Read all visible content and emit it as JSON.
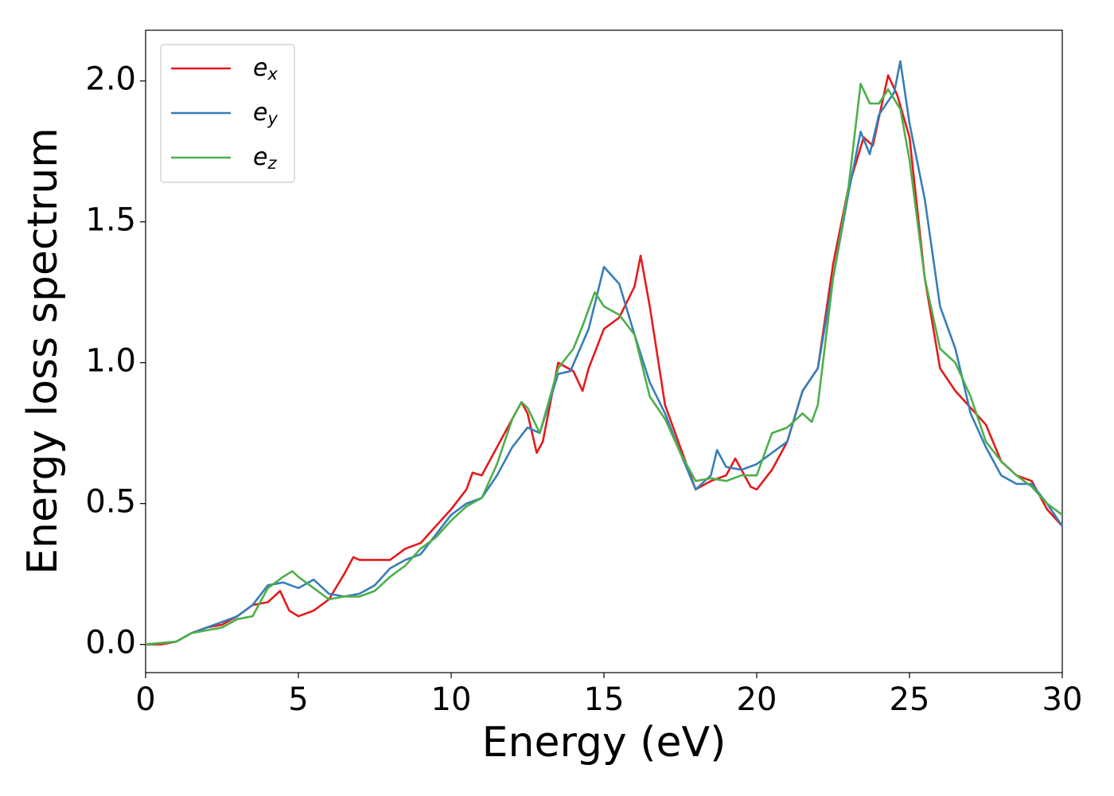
{
  "chart_data": {
    "type": "line",
    "xlabel": "Energy (eV)",
    "ylabel": "Energy loss spectrum",
    "xlim": [
      0,
      30
    ],
    "ylim": [
      -0.1,
      2.18
    ],
    "xticks": [
      0,
      5,
      10,
      15,
      20,
      25,
      30
    ],
    "yticks": [
      {
        "value": 0,
        "label": "0.0"
      },
      0.5,
      {
        "value": 1,
        "label": "1.0"
      },
      1.5,
      {
        "value": 2,
        "label": "2.0"
      }
    ],
    "grid": false,
    "legend": "upper left",
    "series": [
      {
        "name": "ex",
        "color": "#e41a1c",
        "x": [
          0,
          0.5,
          1,
          1.5,
          2,
          2.5,
          3,
          3.5,
          4,
          4.4,
          4.7,
          5,
          5.5,
          6,
          6.5,
          6.8,
          7,
          7.5,
          8,
          8.5,
          9,
          9.5,
          10,
          10.5,
          10.7,
          11,
          11.5,
          12,
          12.3,
          12.5,
          12.8,
          13,
          13.5,
          14,
          14.3,
          14.5,
          15,
          15.5,
          16,
          16.2,
          16.5,
          17,
          17.5,
          18,
          18.5,
          19,
          19.3,
          19.5,
          19.8,
          20,
          20.5,
          21,
          21.5,
          22,
          22.5,
          23,
          23.5,
          23.8,
          24.3,
          24.6,
          25,
          25.5,
          26,
          26.5,
          27,
          27.5,
          28,
          28.5,
          29,
          29.5,
          30
        ],
        "values": [
          0,
          0,
          0.01,
          0.04,
          0.06,
          0.07,
          0.1,
          0.14,
          0.15,
          0.19,
          0.12,
          0.1,
          0.12,
          0.16,
          0.25,
          0.31,
          0.3,
          0.3,
          0.3,
          0.34,
          0.36,
          0.42,
          0.48,
          0.55,
          0.61,
          0.6,
          0.7,
          0.8,
          0.86,
          0.82,
          0.68,
          0.72,
          1.0,
          0.97,
          0.9,
          0.98,
          1.12,
          1.16,
          1.27,
          1.38,
          1.2,
          0.85,
          0.7,
          0.55,
          0.58,
          0.6,
          0.66,
          0.62,
          0.56,
          0.55,
          0.62,
          0.72,
          0.9,
          0.98,
          1.35,
          1.62,
          1.8,
          1.77,
          2.02,
          1.95,
          1.8,
          1.3,
          0.98,
          0.9,
          0.84,
          0.78,
          0.65,
          0.6,
          0.58,
          0.48,
          0.42
        ]
      },
      {
        "name": "ey",
        "color": "#377eb8",
        "x": [
          0,
          1,
          1.5,
          2,
          2.5,
          3,
          3.5,
          4,
          4.5,
          5,
          5.5,
          6,
          6.5,
          7,
          7.5,
          8,
          8.5,
          9,
          9.5,
          10,
          10.5,
          11,
          11.5,
          12,
          12.5,
          12.9,
          13.5,
          13.9,
          14.5,
          15,
          15.5,
          16,
          16.5,
          17,
          17.5,
          18,
          18.5,
          18.7,
          19,
          19.5,
          20,
          20.5,
          21,
          21.5,
          22,
          22.5,
          23,
          23.4,
          23.7,
          24,
          24.5,
          24.7,
          25,
          25.5,
          26,
          26.5,
          27,
          27.5,
          28,
          28.5,
          29,
          29.5,
          30
        ],
        "values": [
          0,
          0.01,
          0.04,
          0.06,
          0.08,
          0.1,
          0.14,
          0.21,
          0.22,
          0.2,
          0.23,
          0.18,
          0.17,
          0.18,
          0.21,
          0.27,
          0.3,
          0.32,
          0.39,
          0.46,
          0.5,
          0.52,
          0.6,
          0.7,
          0.77,
          0.75,
          0.96,
          0.97,
          1.12,
          1.34,
          1.28,
          1.1,
          0.93,
          0.82,
          0.68,
          0.55,
          0.6,
          0.69,
          0.63,
          0.62,
          0.64,
          0.68,
          0.72,
          0.9,
          0.98,
          1.3,
          1.6,
          1.82,
          1.74,
          1.88,
          1.96,
          2.07,
          1.85,
          1.58,
          1.2,
          1.05,
          0.82,
          0.7,
          0.6,
          0.57,
          0.57,
          0.5,
          0.42
        ]
      },
      {
        "name": "ez",
        "color": "#4daf4a",
        "x": [
          0,
          1,
          1.5,
          2,
          2.5,
          3,
          3.5,
          4,
          4.5,
          4.8,
          5,
          5.5,
          6,
          6.5,
          7,
          7.5,
          8,
          8.5,
          9,
          9.5,
          10,
          10.5,
          11,
          11.5,
          12,
          12.3,
          12.5,
          12.9,
          13.5,
          14,
          14.3,
          14.7,
          15,
          15.5,
          16,
          16.5,
          17,
          17.5,
          18,
          18.5,
          19,
          19.5,
          20,
          20.5,
          21,
          21.5,
          21.8,
          22,
          22.5,
          23,
          23.4,
          23.7,
          24,
          24.3,
          24.7,
          25,
          25.5,
          26,
          26.5,
          27,
          27.5,
          28,
          28.5,
          29,
          29.5,
          30
        ],
        "values": [
          0,
          0.01,
          0.04,
          0.05,
          0.06,
          0.09,
          0.1,
          0.2,
          0.24,
          0.26,
          0.24,
          0.2,
          0.16,
          0.17,
          0.17,
          0.19,
          0.24,
          0.28,
          0.34,
          0.38,
          0.44,
          0.49,
          0.52,
          0.64,
          0.8,
          0.86,
          0.84,
          0.75,
          0.98,
          1.05,
          1.13,
          1.25,
          1.2,
          1.17,
          1.1,
          0.88,
          0.8,
          0.68,
          0.58,
          0.59,
          0.58,
          0.6,
          0.6,
          0.75,
          0.77,
          0.82,
          0.79,
          0.85,
          1.3,
          1.62,
          1.99,
          1.92,
          1.92,
          1.97,
          1.9,
          1.72,
          1.3,
          1.05,
          1.0,
          0.88,
          0.72,
          0.65,
          0.6,
          0.56,
          0.5,
          0.46
        ]
      }
    ]
  }
}
